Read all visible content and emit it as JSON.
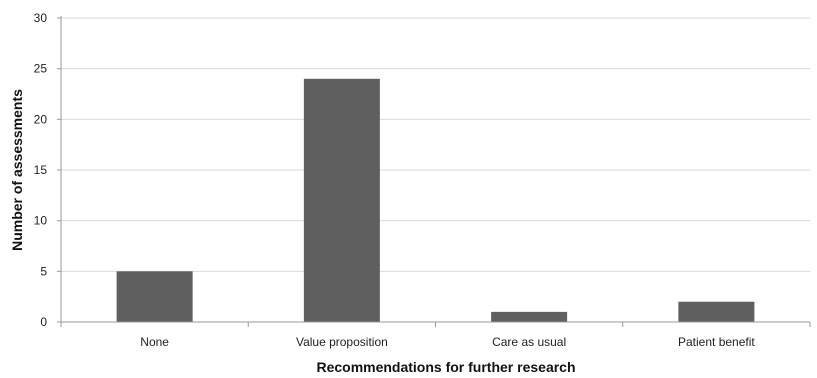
{
  "chart_data": {
    "type": "bar",
    "categories": [
      "None",
      "Value proposition",
      "Care as usual",
      "Patient benefit"
    ],
    "values": [
      5,
      24,
      1,
      2
    ],
    "title": "",
    "xlabel": "Recommendations for further research",
    "ylabel": "Number of assessments",
    "ylim": [
      0,
      30
    ],
    "yticks": [
      0,
      5,
      10,
      15,
      20,
      25,
      30
    ],
    "grid": true,
    "legend": "none",
    "bar_color": "#5f5f5f",
    "grid_color": "#d9d9d9",
    "axis_color": "#9a9a9a"
  }
}
